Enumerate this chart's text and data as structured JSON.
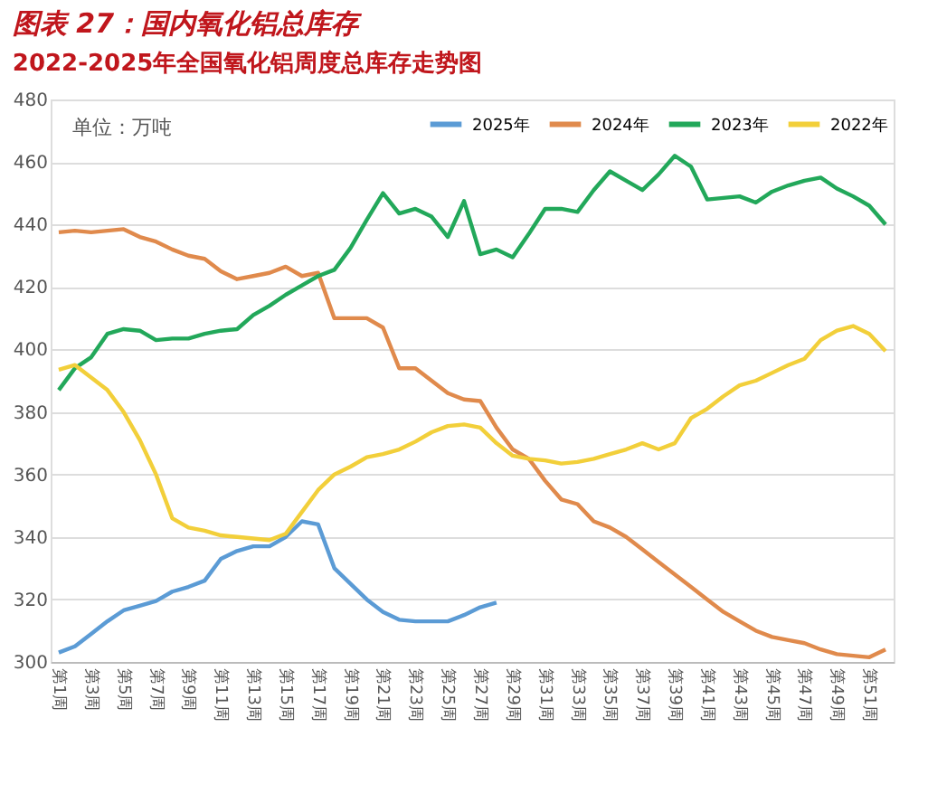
{
  "chart_data": {
    "type": "line",
    "title": "图表 27：国内氧化铝总库存",
    "subtitle": "2022-2025年全国氧化铝周度总库存走势图",
    "categories": [
      "第1周",
      null,
      "第3周",
      null,
      "第5周",
      null,
      "第7周",
      null,
      "第9周",
      null,
      "第11周",
      null,
      "第13周",
      null,
      "第15周",
      null,
      "第17周",
      null,
      "第19周",
      null,
      "第21周",
      null,
      "第23周",
      null,
      "第25周",
      null,
      "第27周",
      null,
      "第29周",
      null,
      "第31周",
      null,
      "第33周",
      null,
      "第35周",
      null,
      "第37周",
      null,
      "第39周",
      null,
      "第41周",
      null,
      "第43周",
      null,
      "第45周",
      null,
      "第47周",
      null,
      "第49周",
      null,
      "第51周",
      null
    ],
    "series": [
      {
        "name": "2025年",
        "color": "#5b9bd5",
        "values": [
          303,
          305,
          309,
          313,
          316.5,
          318,
          319.5,
          322.5,
          324,
          326,
          333,
          335.5,
          337,
          337,
          340,
          345,
          344,
          330,
          325,
          320,
          316,
          313.5,
          313,
          313,
          313,
          315,
          317.5,
          319,
          null,
          null,
          null,
          null,
          null,
          null,
          null,
          null,
          null,
          null,
          null,
          null,
          null,
          null,
          null,
          null,
          null,
          null,
          null,
          null,
          null,
          null,
          null,
          null
        ]
      },
      {
        "name": "2024年",
        "color": "#e08a4c",
        "values": [
          437.5,
          438,
          437.5,
          438,
          438.5,
          436,
          434.5,
          432,
          430,
          429,
          425,
          422.5,
          423.5,
          424.5,
          426.5,
          423.5,
          424.5,
          410,
          410,
          410,
          407,
          394,
          394,
          390,
          386,
          384,
          383.5,
          375,
          368,
          365,
          358,
          352,
          350.5,
          345,
          343,
          340,
          336,
          332,
          328,
          324,
          320,
          316,
          313,
          310,
          308,
          307,
          306,
          304,
          302.5,
          302,
          301.5,
          304
        ]
      },
      {
        "name": "2023年",
        "color": "#22a85a",
        "values": [
          387,
          394,
          397.5,
          405,
          406.5,
          406,
          403,
          403.5,
          403.5,
          405,
          406,
          406.5,
          411,
          414,
          417.5,
          420.5,
          423.5,
          425.5,
          432.5,
          441.5,
          450,
          443.5,
          445,
          442.5,
          436,
          447.5,
          430.5,
          432,
          429.5,
          437,
          445,
          445,
          444,
          451,
          457,
          454,
          451,
          456,
          462,
          458.5,
          448,
          448.5,
          449,
          447,
          450.5,
          452.5,
          454,
          455,
          451.5,
          449,
          446,
          440
        ]
      },
      {
        "name": "2022年",
        "color": "#f2cf3a",
        "values": [
          393.5,
          395,
          391,
          387,
          380,
          371,
          360,
          346,
          343,
          342,
          340.5,
          340,
          339.5,
          339,
          341,
          348,
          355,
          360,
          362.5,
          365.5,
          366.5,
          368,
          370.5,
          373.5,
          375.5,
          376,
          375,
          370,
          366,
          365,
          364.5,
          363.5,
          364,
          365,
          366.5,
          368,
          370,
          368,
          370,
          378,
          381,
          385,
          388.5,
          390,
          392.5,
          395,
          397,
          403,
          406,
          407.5,
          405,
          399.5
        ]
      }
    ],
    "ylim": [
      300,
      480
    ],
    "yticks": [
      300,
      320,
      340,
      360,
      380,
      400,
      420,
      440,
      460,
      480
    ],
    "grid": "y",
    "legend": "top right",
    "marker": "none",
    "line_style": "solid",
    "annotations": [
      "单位：万吨"
    ]
  }
}
